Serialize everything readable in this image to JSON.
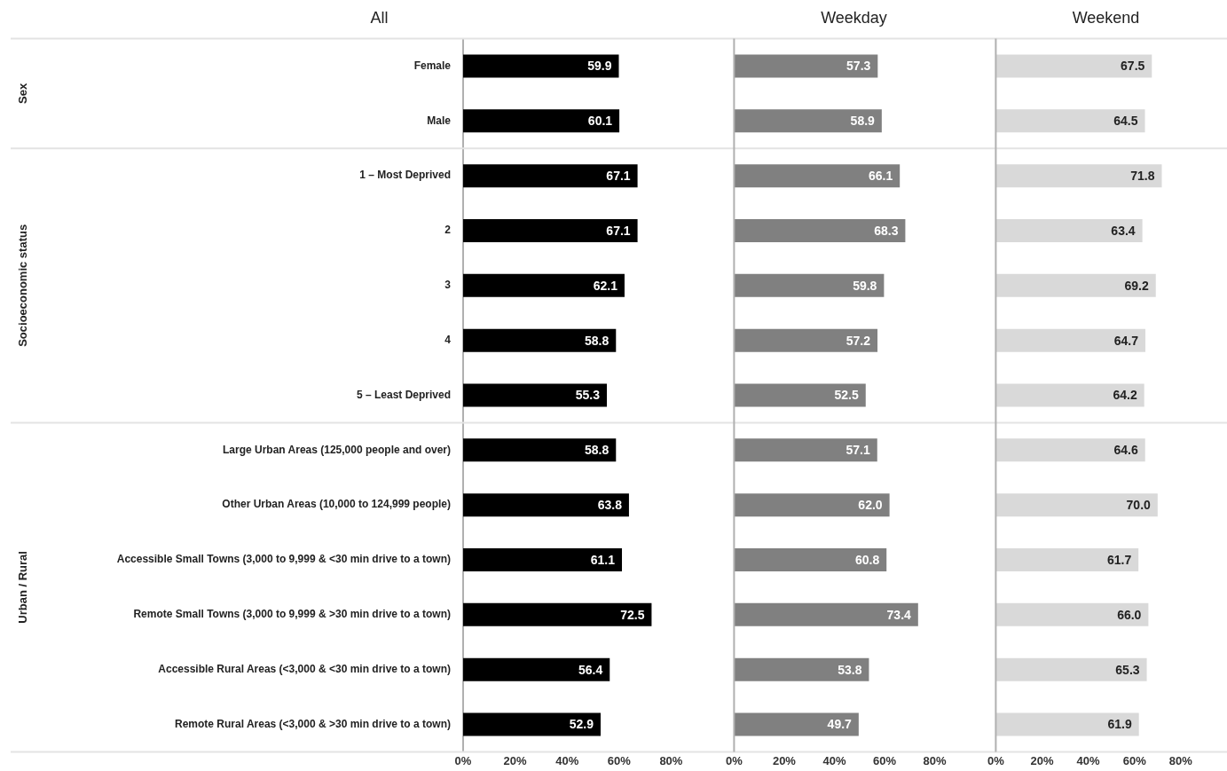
{
  "chart_data": [
    {
      "type": "bar",
      "orientation": "horizontal",
      "title": "All",
      "categories": [
        "Female",
        "Male",
        "1 – Most Deprived",
        "2",
        "3",
        "4",
        "5 – Least Deprived",
        "Large Urban Areas (125,000 people and over)",
        "Other Urban Areas (10,000 to 124,999 people)",
        "Accessible Small Towns (3,000 to 9,999 & <30 min drive to a town)",
        "Remote Small Towns (3,000 to 9,999 & >30 min drive to a town)",
        "Accessible Rural Areas (<3,000 & <30 min drive to a town)",
        "Remote Rural Areas (<3,000 & >30 min drive to a town)"
      ],
      "values": [
        59.9,
        60.1,
        67.1,
        67.1,
        62.1,
        58.8,
        55.3,
        58.8,
        63.8,
        61.1,
        72.5,
        56.4,
        52.9
      ],
      "value_labels": [
        "59.9",
        "60.1",
        "67.1",
        "67.1",
        "62.1",
        "58.8",
        "55.3",
        "58.8",
        "63.8",
        "61.1",
        "72.5",
        "56.4",
        "52.9"
      ],
      "color": "#000000",
      "xlim": [
        0,
        100
      ],
      "xticks": [
        {
          "value": 0,
          "label": "0%"
        },
        {
          "value": 20,
          "label": "20%"
        },
        {
          "value": 40,
          "label": "40%"
        },
        {
          "value": 60,
          "label": "60%"
        },
        {
          "value": 80,
          "label": "80%"
        }
      ],
      "grid": false,
      "legend": false,
      "annotations": [
        "Sex",
        "Socioeconomic status",
        "Urban / Rural"
      ]
    },
    {
      "type": "bar",
      "orientation": "horizontal",
      "title": "Weekday",
      "values": [
        57.3,
        58.9,
        66.1,
        68.3,
        59.8,
        57.2,
        52.5,
        57.1,
        62.0,
        60.8,
        73.4,
        53.8,
        49.7
      ],
      "value_labels": [
        "57.3",
        "58.9",
        "66.1",
        "68.3",
        "59.8",
        "57.2",
        "52.5",
        "57.1",
        "62.0",
        "60.8",
        "73.4",
        "53.8",
        "49.7"
      ],
      "color": "#808080",
      "xlim": [
        0,
        100
      ],
      "xticks": [
        {
          "value": 0,
          "label": "0%"
        },
        {
          "value": 20,
          "label": "20%"
        },
        {
          "value": 40,
          "label": "40%"
        },
        {
          "value": 60,
          "label": "60%"
        },
        {
          "value": 80,
          "label": "80%"
        }
      ],
      "grid": false,
      "legend": false,
      "tick_labels": "x"
    },
    {
      "type": "bar",
      "orientation": "horizontal",
      "title": "Weekend",
      "values": [
        67.5,
        64.5,
        71.8,
        63.4,
        69.2,
        64.7,
        64.2,
        64.6,
        70.0,
        61.7,
        66.0,
        65.3,
        61.9
      ],
      "value_labels": [
        "67.5",
        "64.5",
        "71.8",
        "63.4",
        "69.2",
        "64.7",
        "64.2",
        "64.6",
        "70.0",
        "61.7",
        "66.0",
        "65.3",
        "61.9"
      ],
      "color": "#d9d9d9",
      "xlim": [
        0,
        100
      ],
      "xticks": [
        {
          "value": 0,
          "label": "0%"
        },
        {
          "value": 20,
          "label": "20%"
        },
        {
          "value": 40,
          "label": "40%"
        },
        {
          "value": 60,
          "label": "60%"
        },
        {
          "value": 80,
          "label": "80%"
        }
      ],
      "grid": false,
      "legend": false,
      "tick_labels": "x"
    }
  ]
}
